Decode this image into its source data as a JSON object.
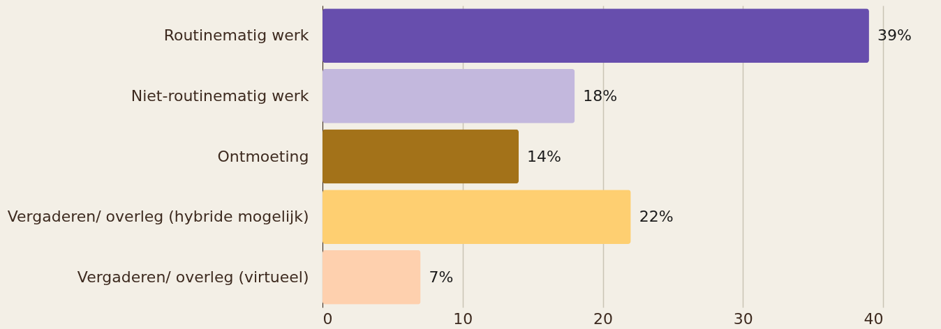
{
  "chart_data": {
    "type": "bar",
    "orientation": "horizontal",
    "categories": [
      "Routinematig werk",
      "Niet-routinematig werk",
      "Ontmoeting",
      "Vergaderen/ overleg (hybride mogelijk)",
      "Vergaderen/ overleg (virtueel)"
    ],
    "values": [
      39,
      18,
      14,
      22,
      7
    ],
    "colors": [
      "#674ead",
      "#c3b8dd",
      "#a37219",
      "#fecf71",
      "#fed0ae"
    ],
    "value_labels": [
      "39%",
      "18%",
      "14%",
      "22%",
      "7%"
    ],
    "xlim": [
      0,
      40
    ],
    "xticks": [
      0,
      10,
      20,
      30,
      40
    ],
    "grid": "x"
  }
}
